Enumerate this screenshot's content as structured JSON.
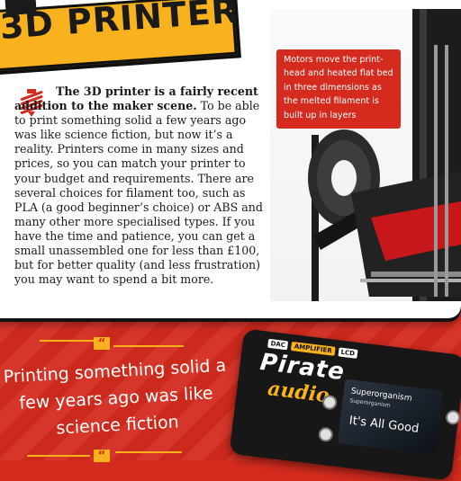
{
  "title": "3D PRINTER",
  "intro": {
    "lead": "The 3D printer is a fairly recent addition to the maker scene.",
    "body": " To be able to print something solid a few years ago was like science fiction, but now it’s a reality. Printers come in many sizes and prices, so you can match your printer to your budget and requirements. There are several choices for filament too, such as PLA (a good beginner’s choice) or ABS and many other more specialised types. If you have the time and patience, you can get a small unassembled one for less than £100, but for better quality (and less frustration) you may want to spend a bit more."
  },
  "callout": "Motors move the print-head and heated flat bed in three dimensions as the melted filament is built up in layers",
  "quote": {
    "mark": "“",
    "text": "Printing something solid a few years ago was like science fiction"
  },
  "board": {
    "chips": [
      "DAC",
      "AMPLIFIER",
      "LCD"
    ],
    "brand_top": "Pirate",
    "brand_bottom": "audio",
    "screen_title": "Superorganism",
    "screen_subtitle": "Superorganism",
    "screen_song": "It's All Good"
  },
  "colors": {
    "red": "#d42b1e",
    "yellow": "#f7b21d",
    "white": "#ffffff",
    "ink": "#1a1a1a"
  }
}
